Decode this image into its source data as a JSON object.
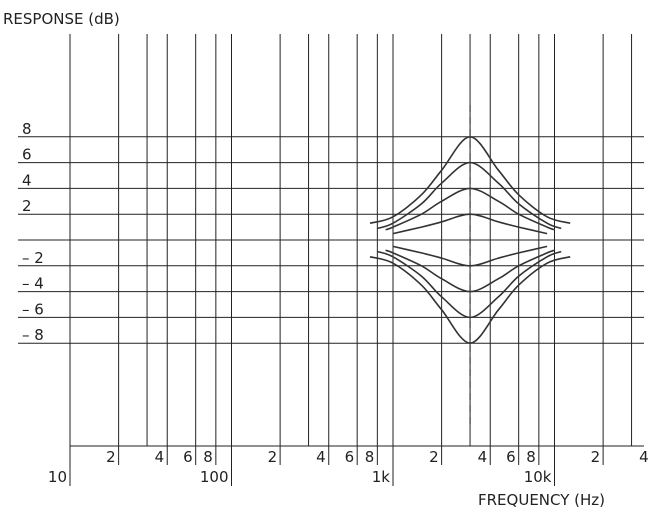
{
  "chart_data": {
    "type": "line",
    "title": "",
    "ylabel": "RESPONSE (dB)",
    "xlabel": "FREQUENCY (Hz)",
    "x_scale": "log",
    "xlim": [
      10,
      50000
    ],
    "ylim": [
      -8,
      8
    ],
    "grid": true,
    "y_ticks": [
      {
        "value": 8,
        "label": "8"
      },
      {
        "value": 6,
        "label": "6"
      },
      {
        "value": 4,
        "label": "4"
      },
      {
        "value": 2,
        "label": "2"
      },
      {
        "value": -2,
        "label": "– 2"
      },
      {
        "value": -4,
        "label": "– 4"
      },
      {
        "value": -6,
        "label": "– 6"
      },
      {
        "value": -8,
        "label": "– 8"
      }
    ],
    "x_minor_ticks": [
      {
        "value": 20,
        "label": "2"
      },
      {
        "value": 40,
        "label": "4"
      },
      {
        "value": 60,
        "label": "6"
      },
      {
        "value": 80,
        "label": "8"
      },
      {
        "value": 200,
        "label": "2"
      },
      {
        "value": 400,
        "label": "4"
      },
      {
        "value": 600,
        "label": "6"
      },
      {
        "value": 800,
        "label": "8"
      },
      {
        "value": 2000,
        "label": "2"
      },
      {
        "value": 4000,
        "label": "4"
      },
      {
        "value": 6000,
        "label": "6"
      },
      {
        "value": 8000,
        "label": "8"
      },
      {
        "value": 20000,
        "label": "2"
      },
      {
        "value": 40000,
        "label": "4"
      }
    ],
    "x_major_ticks": [
      {
        "value": 10,
        "label": "10"
      },
      {
        "value": 100,
        "label": "100"
      },
      {
        "value": 1000,
        "label": "1k"
      },
      {
        "value": 10000,
        "label": "10k"
      }
    ],
    "center_frequency": 3000,
    "series": [
      {
        "x": [
          720,
          1000,
          1500,
          2000,
          3000,
          4500,
          6000,
          9000,
          12500
        ],
        "values": [
          -1.3,
          -1.8,
          -3.5,
          -5.4,
          -8.0,
          -5.4,
          -3.5,
          -1.8,
          -1.3
        ]
      },
      {
        "x": [
          800,
          1000,
          1500,
          2000,
          3000,
          4500,
          6000,
          9000,
          11000
        ],
        "values": [
          -0.9,
          -1.3,
          -2.8,
          -4.4,
          -6.0,
          -4.4,
          -2.8,
          -1.3,
          -0.9
        ]
      },
      {
        "x": [
          900,
          1000,
          1500,
          2000,
          3000,
          4500,
          6000,
          9000,
          10000
        ],
        "values": [
          -0.8,
          -1.0,
          -2.0,
          -3.0,
          -4.0,
          -3.0,
          -2.0,
          -1.0,
          -0.8
        ]
      },
      {
        "x": [
          1000,
          1500,
          2000,
          3000,
          4500,
          6000,
          9000
        ],
        "values": [
          -0.5,
          -1.0,
          -1.4,
          -2.0,
          -1.4,
          -1.0,
          -0.5
        ]
      },
      {
        "x": [
          1000,
          1500,
          2000,
          3000,
          4500,
          6000,
          9000
        ],
        "values": [
          0.5,
          1.0,
          1.4,
          2.0,
          1.4,
          1.0,
          0.5
        ]
      },
      {
        "x": [
          900,
          1000,
          1500,
          2000,
          3000,
          4500,
          6000,
          9000,
          10000
        ],
        "values": [
          0.8,
          1.0,
          2.0,
          3.0,
          4.0,
          3.0,
          2.0,
          1.0,
          0.8
        ]
      },
      {
        "x": [
          800,
          1000,
          1500,
          2000,
          3000,
          4500,
          6000,
          9000,
          11000
        ],
        "values": [
          0.9,
          1.3,
          2.8,
          4.4,
          6.0,
          4.4,
          2.8,
          1.3,
          0.9
        ]
      },
      {
        "x": [
          720,
          1000,
          1500,
          2000,
          3000,
          4500,
          6000,
          9000,
          12500
        ],
        "values": [
          1.3,
          1.8,
          3.5,
          5.4,
          8.0,
          5.4,
          3.5,
          1.8,
          1.3
        ]
      }
    ]
  }
}
